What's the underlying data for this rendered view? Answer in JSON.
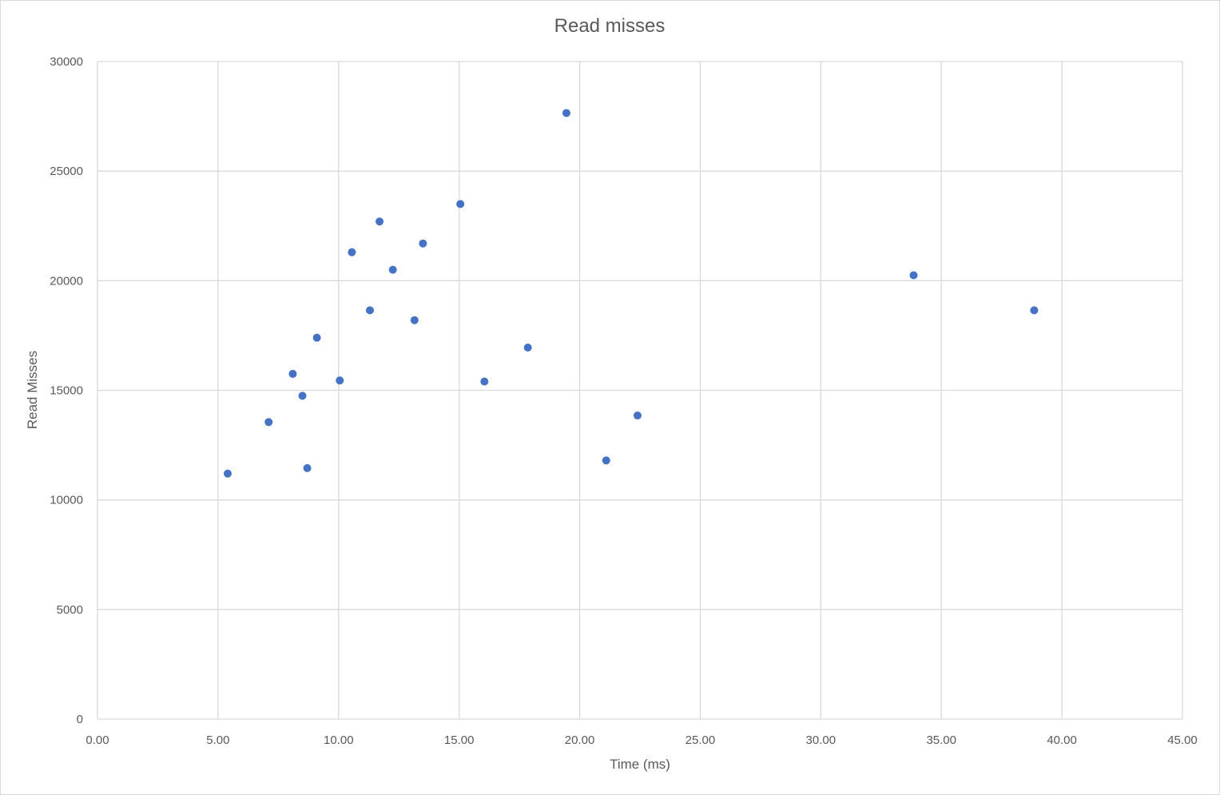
{
  "chart_data": {
    "type": "scatter",
    "title": "Read misses",
    "xlabel": "Time (ms)",
    "ylabel": "Read Misses",
    "xlim": [
      0,
      45
    ],
    "ylim": [
      0,
      30000
    ],
    "x_ticks": [
      "0.00",
      "5.00",
      "10.00",
      "15.00",
      "20.00",
      "25.00",
      "30.00",
      "35.00",
      "40.00",
      "45.00"
    ],
    "y_ticks": [
      "0",
      "5000",
      "10000",
      "15000",
      "20000",
      "25000",
      "30000"
    ],
    "grid": true,
    "legend": "none",
    "marker_color": "#4472c4",
    "points": [
      {
        "x": 5.4,
        "y": 11200
      },
      {
        "x": 7.1,
        "y": 13550
      },
      {
        "x": 8.1,
        "y": 15750
      },
      {
        "x": 8.5,
        "y": 14750
      },
      {
        "x": 8.7,
        "y": 11450
      },
      {
        "x": 9.1,
        "y": 17400
      },
      {
        "x": 10.05,
        "y": 15450
      },
      {
        "x": 10.55,
        "y": 21300
      },
      {
        "x": 11.3,
        "y": 18650
      },
      {
        "x": 11.7,
        "y": 22700
      },
      {
        "x": 12.25,
        "y": 20500
      },
      {
        "x": 13.15,
        "y": 18200
      },
      {
        "x": 13.5,
        "y": 21700
      },
      {
        "x": 15.05,
        "y": 23500
      },
      {
        "x": 16.05,
        "y": 15400
      },
      {
        "x": 17.85,
        "y": 16950
      },
      {
        "x": 19.45,
        "y": 27650
      },
      {
        "x": 21.1,
        "y": 11800
      },
      {
        "x": 22.4,
        "y": 13850
      },
      {
        "x": 33.85,
        "y": 20250
      },
      {
        "x": 38.85,
        "y": 18650
      }
    ]
  }
}
